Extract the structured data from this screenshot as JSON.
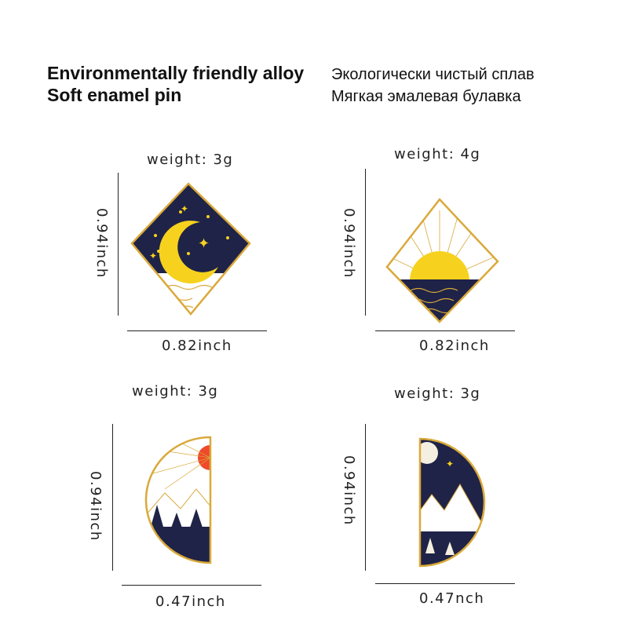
{
  "header": {
    "en_line1": "Environmentally friendly alloy",
    "en_line2": "Soft enamel pin",
    "ru_line1": "Экологически чистый сплав",
    "ru_line2": "Мягкая эмалевая булавка"
  },
  "pins": [
    {
      "name": "moon-diamond",
      "weight": "weight:  3g",
      "height": "0.94inch",
      "width": "0.82inch"
    },
    {
      "name": "sunset-diamond",
      "weight": "weight:  4g",
      "height": "0.94inch",
      "width": "0.82inch"
    },
    {
      "name": "sun-mountain-half-circle",
      "weight": "weight:  3g",
      "height": "0.94inch",
      "width": "0.47inch"
    },
    {
      "name": "night-mountain-half-circle",
      "weight": "weight:  3g",
      "height": "0.94inch",
      "width": "0.47nch"
    }
  ],
  "colors": {
    "navy": "#1f2347",
    "yellow": "#f6d21e",
    "gold": "#d9a93a",
    "red": "#ef4a2a"
  }
}
